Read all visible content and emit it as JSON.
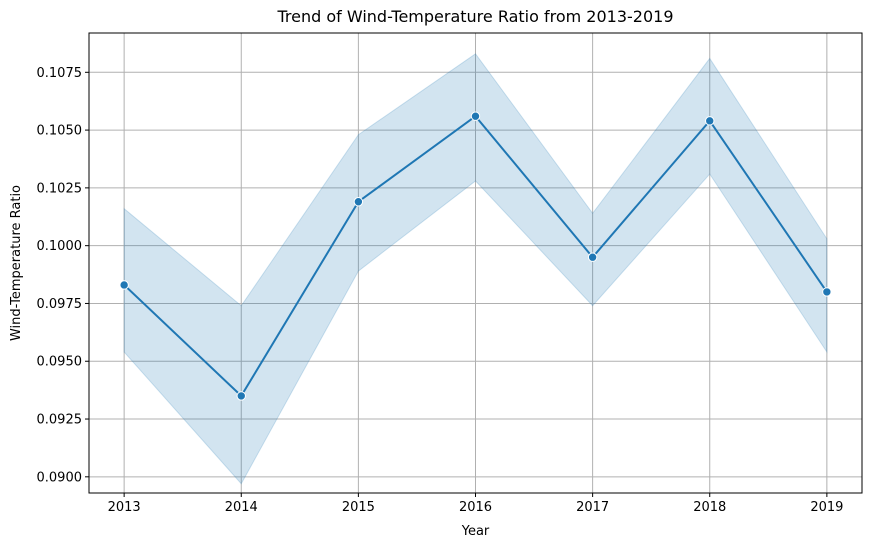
{
  "chart_data": {
    "type": "line",
    "title": "Trend of Wind-Temperature Ratio from 2013-2019",
    "xlabel": "Year",
    "ylabel": "Wind-Temperature Ratio",
    "x": [
      2013,
      2014,
      2015,
      2016,
      2017,
      2018,
      2019
    ],
    "x_tick_labels": [
      "2013",
      "2014",
      "2015",
      "2016",
      "2017",
      "2018",
      "2019"
    ],
    "y_ticks": [
      0.09,
      0.0925,
      0.095,
      0.0975,
      0.1,
      0.1025,
      0.105,
      0.1075
    ],
    "y_tick_labels": [
      "0.0900",
      "0.0925",
      "0.0950",
      "0.0975",
      "0.1000",
      "0.1025",
      "0.1050",
      "0.1075"
    ],
    "xlim": [
      2012.7,
      2019.3
    ],
    "ylim": [
      0.0893,
      0.1092
    ],
    "grid": true,
    "series": [
      {
        "values": [
          0.0983,
          0.0935,
          0.1019,
          0.1056,
          0.0995,
          0.1054,
          0.098
        ],
        "ci_lower": [
          0.0954,
          0.0897,
          0.0989,
          0.1028,
          0.0974,
          0.1031,
          0.0954
        ],
        "ci_upper": [
          0.1016,
          0.0974,
          0.1048,
          0.1083,
          0.1014,
          0.1081,
          0.1003
        ],
        "color": "#1f77b4",
        "band_color": "#1f77b4",
        "marker": "circle"
      }
    ]
  }
}
